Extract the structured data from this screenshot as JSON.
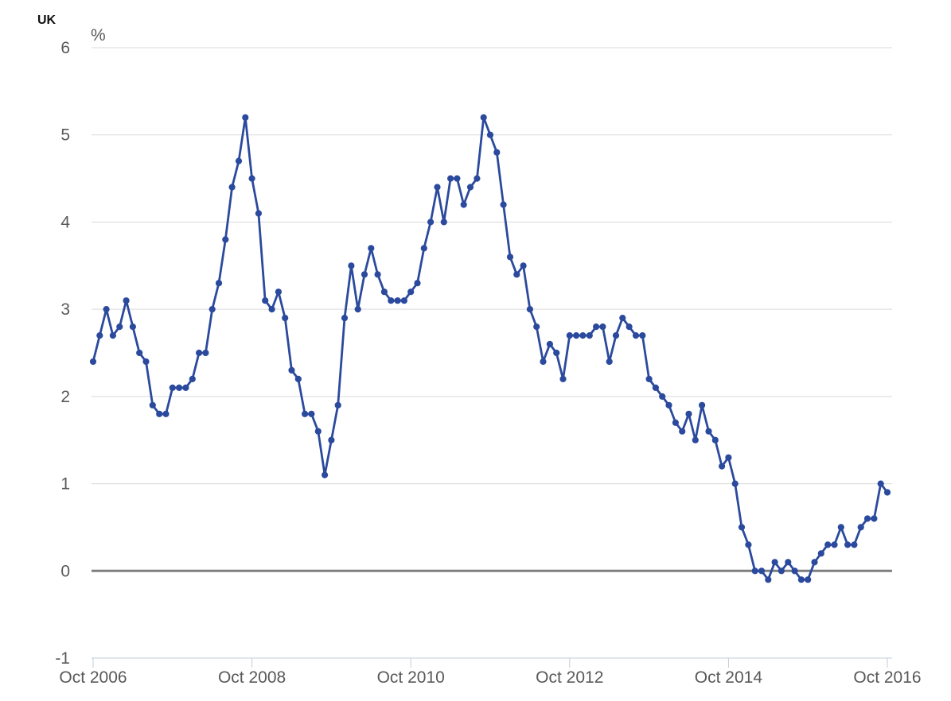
{
  "header": {
    "title": "UK",
    "unit_label": "%"
  },
  "colors": {
    "line": "#2b4a9e",
    "marker": "#2b4a9e",
    "grid": "#d9d9d9",
    "zero_line": "#7f7f7f",
    "axis_line": "#c1ccd8",
    "tick_label": "#595959",
    "title": "#111111"
  },
  "chart_data": {
    "type": "line",
    "title": "UK",
    "ylabel": "%",
    "xlabel": "",
    "ylim": [
      -1,
      6
    ],
    "grid": "horizontal",
    "legend": "none",
    "marker": "circle",
    "x_frequency": "monthly",
    "x_start": "Oct 2006",
    "x_end": "Oct 2016",
    "x_tick_labels": [
      "Oct 2006",
      "Oct 2008",
      "Oct 2010",
      "Oct 2012",
      "Oct 2014",
      "Oct 2016"
    ],
    "x_tick_month_interval": 24,
    "y_tick_labels": [
      6,
      5,
      4,
      3,
      2,
      1,
      0,
      -1
    ],
    "values": [
      2.4,
      2.7,
      3.0,
      2.7,
      2.8,
      3.1,
      2.8,
      2.5,
      2.4,
      1.9,
      1.8,
      1.8,
      2.1,
      2.1,
      2.1,
      2.2,
      2.5,
      2.5,
      3.0,
      3.3,
      3.8,
      4.4,
      4.7,
      5.2,
      4.5,
      4.1,
      3.1,
      3.0,
      3.2,
      2.9,
      2.3,
      2.2,
      1.8,
      1.8,
      1.6,
      1.1,
      1.5,
      1.9,
      2.9,
      3.5,
      3.0,
      3.4,
      3.7,
      3.4,
      3.2,
      3.1,
      3.1,
      3.1,
      3.2,
      3.3,
      3.7,
      4.0,
      4.4,
      4.0,
      4.5,
      4.5,
      4.2,
      4.4,
      4.5,
      5.2,
      5.0,
      4.8,
      4.2,
      3.6,
      3.4,
      3.5,
      3.0,
      2.8,
      2.4,
      2.6,
      2.5,
      2.2,
      2.7,
      2.7,
      2.7,
      2.7,
      2.8,
      2.8,
      2.4,
      2.7,
      2.9,
      2.8,
      2.7,
      2.7,
      2.2,
      2.1,
      2.0,
      1.9,
      1.7,
      1.6,
      1.8,
      1.5,
      1.9,
      1.6,
      1.5,
      1.2,
      1.3,
      1.0,
      0.5,
      0.3,
      0.0,
      0.0,
      -0.1,
      0.1,
      0.0,
      0.1,
      0.0,
      -0.1,
      -0.1,
      0.1,
      0.2,
      0.3,
      0.3,
      0.5,
      0.3,
      0.3,
      0.5,
      0.6,
      0.6,
      1.0,
      0.9
    ]
  }
}
